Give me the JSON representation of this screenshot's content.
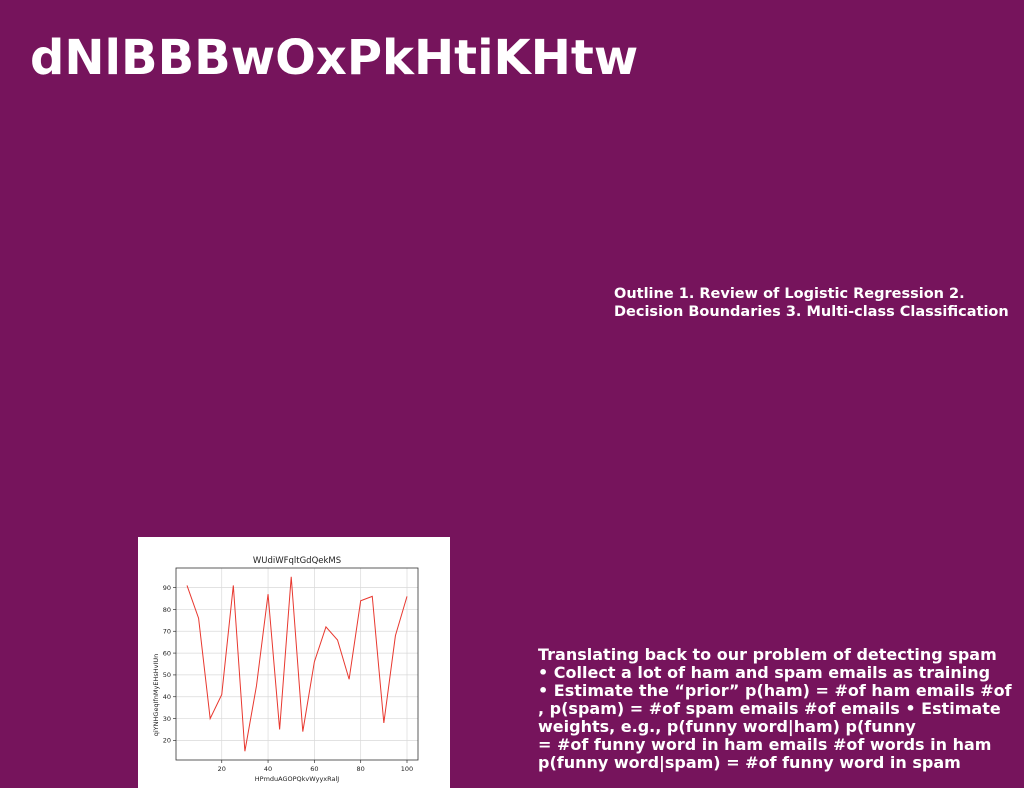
{
  "slide": {
    "title": "dNlBBBwOxPkHtiKHtw",
    "outline": "Outline 1. Review of Logistic Regression 2. Decision Boundaries 3. Multi-class Classification",
    "body_lines": [
      "Translating back to our problem of detecting spam",
      "• Collect a lot of ham and spam emails as training",
      "• Estimate the “prior” p(ham) = #of ham emails #of",
      ", p(spam) = #of spam emails #of emails • Estimate",
      "weights, e.g., p(funny word|ham) p(funny",
      "= #of funny word in ham emails #of words in ham",
      "p(funny word|spam) = #of funny word in spam"
    ]
  },
  "chart_data": {
    "type": "line",
    "title": "WUdiWFqltGdQekMS",
    "xlabel": "HPmduAGOPQkvWyyxRalJ",
    "ylabel": "qiYNHGeqIfnMyEHsHvIUn",
    "x": [
      5,
      10,
      15,
      20,
      25,
      30,
      35,
      40,
      45,
      50,
      55,
      60,
      65,
      70,
      75,
      80,
      85,
      90,
      95,
      100
    ],
    "series": [
      {
        "name": "",
        "values": [
          91,
          76,
          30,
          41,
          91,
          15,
          45,
          87,
          25,
          95,
          24,
          56,
          72,
          66,
          48,
          84,
          86,
          28,
          68,
          86
        ]
      }
    ],
    "xticks": [
      20,
      40,
      60,
      80,
      100
    ],
    "yticks": [
      20,
      30,
      40,
      50,
      60,
      70,
      80,
      90
    ],
    "xlim": [
      0.25,
      104.75
    ],
    "ylim": [
      11,
      99
    ],
    "grid": true,
    "line_color": "#e8382f"
  }
}
